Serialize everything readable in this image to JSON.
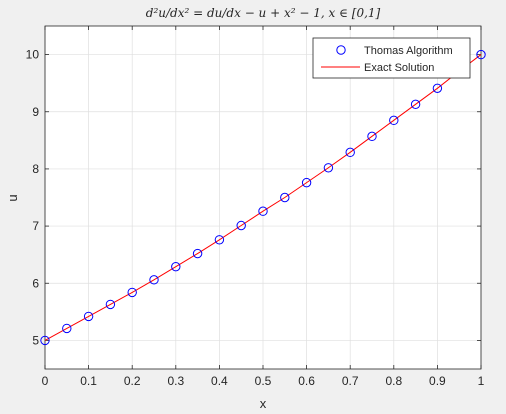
{
  "chart_data": {
    "type": "line",
    "title": "d²u/dx² = du/dx − u + x² − 1, x ∈ [0,1]",
    "xlabel": "x",
    "ylabel": "u",
    "xlim": [
      0,
      1
    ],
    "ylim": [
      4.5,
      10.5
    ],
    "xticks": [
      "0",
      "0.1",
      "0.2",
      "0.3",
      "0.4",
      "0.5",
      "0.6",
      "0.7",
      "0.8",
      "0.9",
      "1"
    ],
    "yticks": [
      "5",
      "6",
      "7",
      "8",
      "9",
      "10"
    ],
    "grid": true,
    "legend_position": "top-right",
    "series": [
      {
        "name": "Thomas Algorithm",
        "style": "markers",
        "marker": "circle",
        "color": "#0000ff",
        "x": [
          0,
          0.05,
          0.1,
          0.15,
          0.2,
          0.25,
          0.3,
          0.35,
          0.4,
          0.45,
          0.5,
          0.55,
          0.6,
          0.65,
          0.7,
          0.75,
          0.8,
          0.85,
          0.9,
          0.95,
          1
        ],
        "values": [
          5.0,
          5.21,
          5.42,
          5.63,
          5.84,
          6.06,
          6.29,
          6.52,
          6.76,
          7.01,
          7.26,
          7.5,
          7.76,
          8.02,
          8.29,
          8.57,
          8.85,
          9.13,
          9.41,
          9.71,
          10.0
        ]
      },
      {
        "name": "Exact Solution",
        "style": "line",
        "color": "#ff0000",
        "x": [
          0,
          0.05,
          0.1,
          0.15,
          0.2,
          0.25,
          0.3,
          0.35,
          0.4,
          0.45,
          0.5,
          0.55,
          0.6,
          0.65,
          0.7,
          0.75,
          0.8,
          0.85,
          0.9,
          0.95,
          1
        ],
        "values": [
          5.0,
          5.21,
          5.42,
          5.63,
          5.84,
          6.06,
          6.29,
          6.52,
          6.76,
          7.01,
          7.26,
          7.5,
          7.76,
          8.02,
          8.29,
          8.57,
          8.85,
          9.13,
          9.41,
          9.71,
          10.0
        ]
      }
    ]
  }
}
